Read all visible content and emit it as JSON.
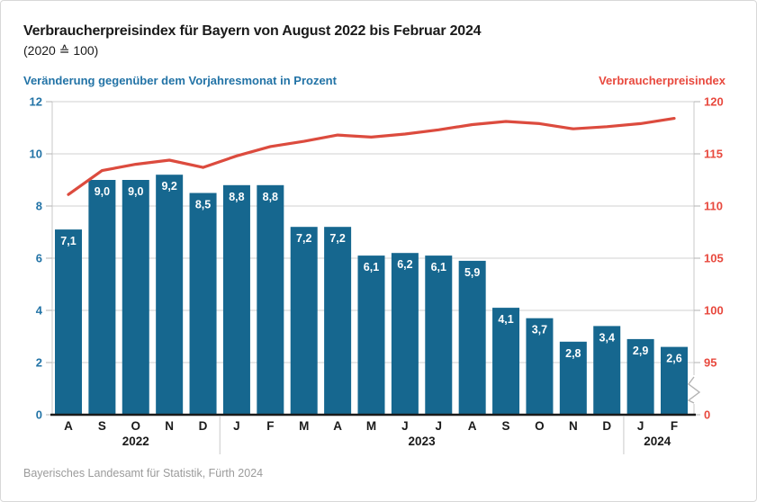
{
  "page": {
    "title": "Verbraucherpreisindex für Bayern von August 2022 bis Februar 2024",
    "subtitle": "(2020 ≙ 100)",
    "left_axis_title": "Veränderung gegenüber dem Vorjahresmonat in Prozent",
    "right_axis_title": "Verbraucherpreisindex",
    "source": "Bayerisches Landesamt für Statistik, Fürth 2024"
  },
  "colors": {
    "bar": "#16678f",
    "line": "#dc4b3e",
    "left_axis_text": "#2273a6",
    "right_axis_text": "#e8493e",
    "grid": "#d2d2d2",
    "axis_light": "#c9c9c9",
    "tick": "#b3b3b3",
    "axis_dark": "#1a1a1a",
    "label_dark": "#1a1a1a",
    "bar_label": "#ffffff",
    "source_text": "#9b9b9b"
  },
  "chart_data": {
    "type": "bar+line",
    "title": "Verbraucherpreisindex für Bayern von August 2022 bis Februar 2024",
    "subtitle": "(2020 ≙ 100)",
    "categories": [
      "A",
      "S",
      "O",
      "N",
      "D",
      "J",
      "F",
      "M",
      "A",
      "M",
      "J",
      "J",
      "A",
      "S",
      "O",
      "N",
      "D",
      "J",
      "F"
    ],
    "year_groups": [
      {
        "label": "2022",
        "start": 0,
        "end": 4
      },
      {
        "label": "2023",
        "start": 5,
        "end": 16
      },
      {
        "label": "2024",
        "start": 17,
        "end": 18
      }
    ],
    "series": [
      {
        "name": "Veränderung gegenüber dem Vorjahresmonat in Prozent",
        "type": "bar",
        "axis": "left",
        "values": [
          7.1,
          9.0,
          9.0,
          9.2,
          8.5,
          8.8,
          8.8,
          7.2,
          7.2,
          6.1,
          6.2,
          6.1,
          5.9,
          4.1,
          3.7,
          2.8,
          3.4,
          2.9,
          2.6
        ],
        "labels": [
          "7,1",
          "9,0",
          "9,0",
          "9,2",
          "8,5",
          "8,8",
          "8,8",
          "7,2",
          "7,2",
          "6,1",
          "6,2",
          "6,1",
          "5,9",
          "4,1",
          "3,7",
          "2,8",
          "3,4",
          "2,9",
          "2,6"
        ]
      },
      {
        "name": "Verbraucherpreisindex",
        "type": "line",
        "axis": "right",
        "values": [
          111.1,
          113.4,
          114.0,
          114.4,
          113.7,
          114.8,
          115.7,
          116.2,
          116.8,
          116.6,
          116.9,
          117.3,
          117.8,
          118.1,
          117.9,
          117.4,
          117.6,
          117.9,
          118.4
        ]
      }
    ],
    "left_axis": {
      "min": 0,
      "max": 12,
      "tick_labels": [
        "12",
        "10",
        "8",
        "6",
        "4",
        "2",
        "0"
      ],
      "tick_values": [
        12,
        10,
        8,
        6,
        4,
        2,
        0
      ]
    },
    "right_axis": {
      "tick_labels": [
        "120",
        "115",
        "110",
        "105",
        "100",
        "95"
      ],
      "tick_values": [
        120,
        115,
        110,
        105,
        100,
        95
      ],
      "zero_label": "0",
      "broken_axis": true
    },
    "grid": true,
    "legend_position": "top-headers"
  }
}
